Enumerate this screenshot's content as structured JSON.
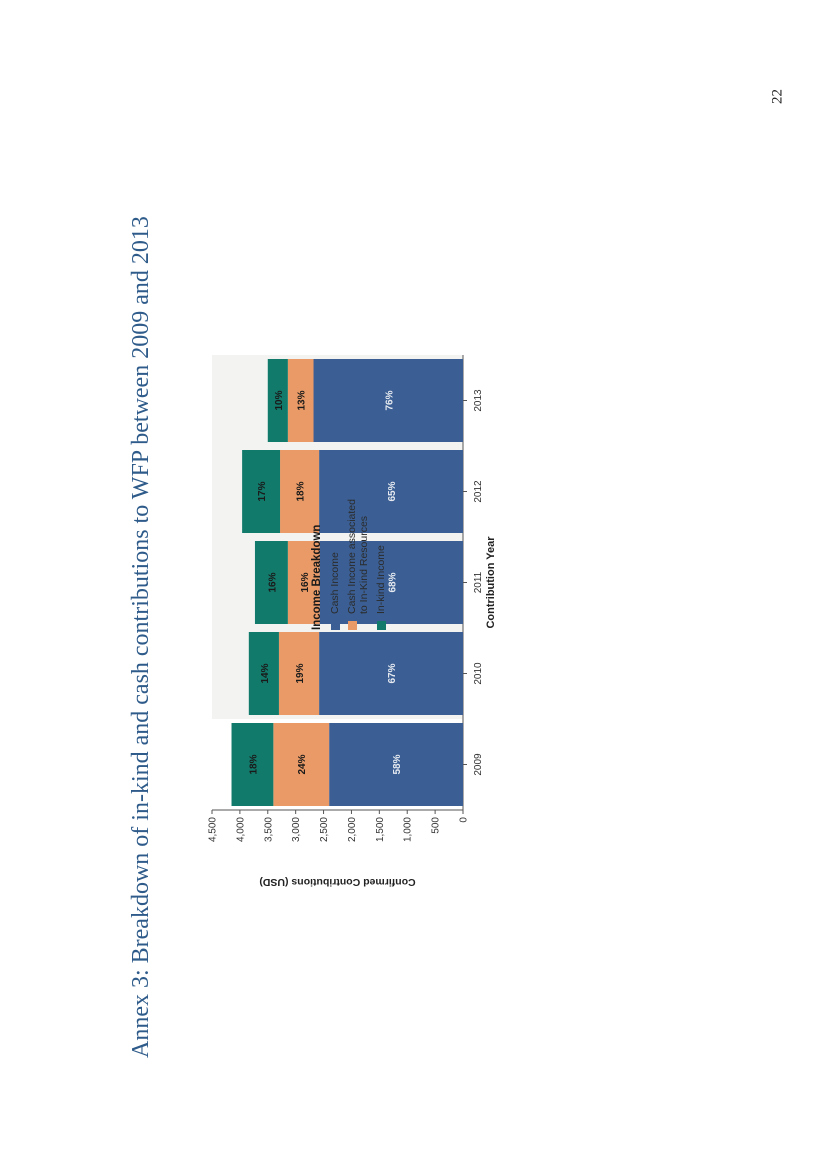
{
  "page_number": "22",
  "title": "Annex 3: Breakdown of in-kind and cash contributions to WFP between 2009 and 2013",
  "chart_data": {
    "type": "bar",
    "stacked": true,
    "categories": [
      "2009",
      "2010",
      "2011",
      "2012",
      "2013"
    ],
    "series": [
      {
        "name": "Cash Income",
        "color": "#3b5f94",
        "values": [
          2400,
          2580,
          2570,
          2580,
          2680
        ],
        "labels": [
          "58%",
          "67%",
          "68%",
          "65%",
          "76%"
        ]
      },
      {
        "name": "Cash Income associated\nto In-Kind Resources",
        "color": "#ea9a66",
        "values": [
          1000,
          720,
          570,
          700,
          460
        ],
        "labels": [
          "24%",
          "19%",
          "16%",
          "18%",
          "13%"
        ]
      },
      {
        "name": "In-kind Income",
        "color": "#127a6b",
        "values": [
          750,
          540,
          590,
          680,
          360
        ],
        "labels": [
          "18%",
          "14%",
          "16%",
          "17%",
          "10%"
        ]
      }
    ],
    "xlabel": "Contribution Year",
    "ylabel": "Confirmed Contributions (USD)",
    "ylim": [
      0,
      4500
    ],
    "yticks": [
      "0",
      "500",
      "1,000",
      "1,500",
      "2,000",
      "2,500",
      "3,000",
      "3,500",
      "4,000",
      "4,500"
    ],
    "legend_title": "Income Breakdown",
    "legend_position": "right"
  }
}
